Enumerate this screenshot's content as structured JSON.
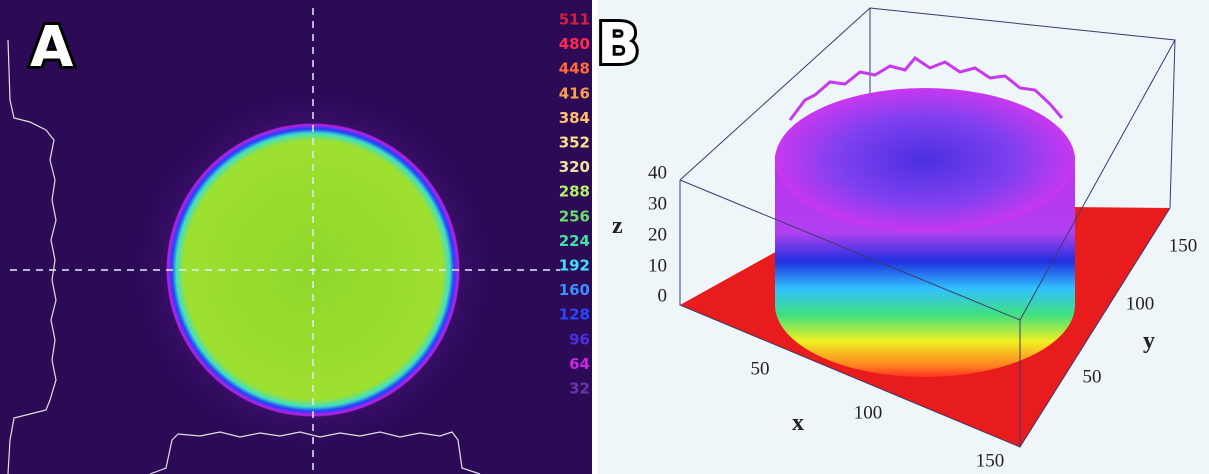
{
  "panel_a": {
    "label": "A",
    "colorbar": [
      {
        "value": 511,
        "color": "#d81e3c"
      },
      {
        "value": 480,
        "color": "#ff2a50"
      },
      {
        "value": 448,
        "color": "#ff6a3c"
      },
      {
        "value": 416,
        "color": "#ffa050"
      },
      {
        "value": 384,
        "color": "#ffc070"
      },
      {
        "value": 352,
        "color": "#ffe08a"
      },
      {
        "value": 320,
        "color": "#f0e0a0"
      },
      {
        "value": 288,
        "color": "#b4f06a"
      },
      {
        "value": 256,
        "color": "#66e066"
      },
      {
        "value": 224,
        "color": "#40e0a8"
      },
      {
        "value": 192,
        "color": "#40e0ff"
      },
      {
        "value": 160,
        "color": "#3a90ff"
      },
      {
        "value": 128,
        "color": "#2a44ff"
      },
      {
        "value": 96,
        "color": "#4a30e0"
      },
      {
        "value": 64,
        "color": "#c828e0"
      },
      {
        "value": 32,
        "color": "#6a34a8"
      }
    ]
  },
  "panel_b": {
    "label": "B",
    "z_axis": {
      "name": "z",
      "ticks": [
        0,
        10,
        20,
        30,
        40
      ]
    },
    "x_axis": {
      "name": "x",
      "ticks": [
        50,
        100,
        150
      ]
    },
    "y_axis": {
      "name": "y",
      "ticks": [
        50,
        100,
        150
      ]
    }
  }
}
